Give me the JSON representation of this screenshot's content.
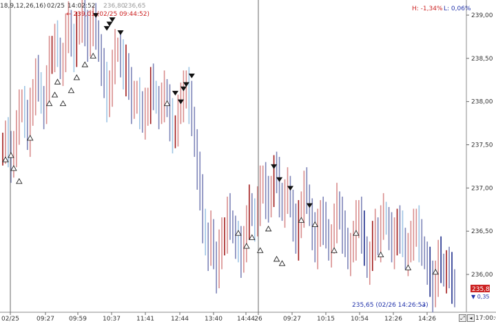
{
  "header": {
    "params": "18,9,12,26,16)",
    "date": "02/25",
    "time": "14:02:52",
    "price_a": "236,80",
    "price_b": "236,65",
    "high_label": "H: -1,34%",
    "low_label": "L: 0,06%"
  },
  "annotations": {
    "high": "← 239,01 (02/25 09:44:52)",
    "low": "235,65 (02/26 14:26:53)",
    "low_arrow": "→"
  },
  "current_price": {
    "value": "235,80",
    "change": "▼ 0,35",
    "color": "#cc2222"
  },
  "footer_time": "17:00:00",
  "colors": {
    "up": "#d88c8c",
    "up_strong": "#a01818",
    "down": "#7d84b8",
    "down_strong": "#1a2a8a",
    "light_down": "#9ec4e4",
    "separator": "#666666"
  },
  "chart_data": {
    "type": "bar",
    "title": "",
    "ylim": [
      235.6,
      239.2
    ],
    "yticks": [
      236.0,
      236.5,
      237.0,
      237.5,
      238.0,
      238.5,
      239.0
    ],
    "ytick_labels": [
      "236,00",
      "236,50",
      "237,00",
      "237,50",
      "238,00",
      "238,50",
      "239,00"
    ],
    "xtick_labels": [
      "02/25",
      "09:27",
      "09:59",
      "10:37",
      "11:41",
      "12:44",
      "13:40",
      "14:44",
      "26",
      "09:27",
      "10:15",
      "10:54",
      "12:26",
      "14:26"
    ],
    "day_separators": [
      "02/25",
      "26"
    ],
    "high": 239.01,
    "low": 235.65,
    "last": 235.8,
    "series": [
      {
        "values": [
          237.5,
          237.6,
          237.4,
          237.3,
          237.5,
          237.7,
          237.9,
          238.0,
          237.8,
          237.6,
          237.9,
          238.1,
          238.3,
          238.2,
          238.0,
          237.9,
          238.2,
          238.5,
          238.6,
          238.7,
          238.6,
          238.4,
          238.5,
          238.8,
          238.9,
          238.7,
          238.6,
          238.8,
          238.9,
          239.0,
          238.8,
          238.7,
          238.9,
          238.9,
          238.8,
          238.6,
          238.4,
          238.2,
          238.0,
          238.2,
          238.4,
          238.6,
          238.6,
          238.5,
          238.3,
          238.4,
          238.2,
          238.0,
          238.0,
          238.1,
          237.9,
          237.8,
          237.9,
          238.0,
          238.2,
          238.1,
          238.0,
          237.9,
          238.0,
          238.1,
          238.0,
          237.8,
          237.6,
          237.7,
          237.9,
          238.0,
          238.1,
          238.2,
          238.0,
          237.8,
          237.5,
          237.2,
          236.9,
          236.6,
          236.4,
          236.3,
          236.5,
          236.2,
          236.0,
          236.3,
          236.4,
          236.5,
          236.7,
          236.6,
          236.5,
          236.4,
          236.3,
          236.2,
          236.4,
          236.6,
          236.8,
          236.7,
          236.6,
          236.8,
          237.0,
          237.1,
          236.9,
          236.8,
          237.0,
          237.2,
          237.1,
          236.9,
          236.8,
          236.9,
          237.0,
          236.8,
          236.6,
          236.4,
          236.6,
          236.8,
          237.0,
          236.9,
          236.7,
          236.5,
          236.3,
          236.5,
          236.7,
          236.6,
          236.5,
          236.3,
          236.4,
          236.6,
          236.8,
          236.7,
          236.5,
          236.4,
          236.2,
          236.3,
          236.4,
          236.6,
          236.7,
          236.5,
          236.3,
          236.1,
          236.2,
          236.4,
          236.5,
          236.4,
          236.6,
          236.7,
          236.6,
          236.5,
          236.3,
          236.4,
          236.6,
          236.5,
          236.4,
          236.2,
          236.3,
          236.4,
          236.5,
          236.6,
          236.4,
          236.3,
          236.2,
          236.1,
          235.9,
          235.8,
          236.0,
          236.2,
          236.1,
          236.0,
          236.1,
          236.0,
          235.9,
          235.8
        ]
      }
    ],
    "markers_up": [
      237.35,
      237.4,
      237.25,
      237.1,
      237.6,
      238.0,
      238.1,
      238.25,
      238.0,
      238.15,
      238.3,
      238.45,
      238.55,
      238.0,
      236.5,
      236.35,
      236.45,
      236.3,
      236.55,
      236.2,
      236.15,
      236.65,
      236.6,
      236.3,
      236.5,
      236.25,
      236.1,
      236.05
    ],
    "markers_down": [
      238.95,
      238.8,
      238.85,
      238.9,
      238.75,
      238.05,
      237.95,
      238.1,
      238.15,
      238.25,
      237.2,
      237.05,
      236.95,
      236.75
    ]
  }
}
